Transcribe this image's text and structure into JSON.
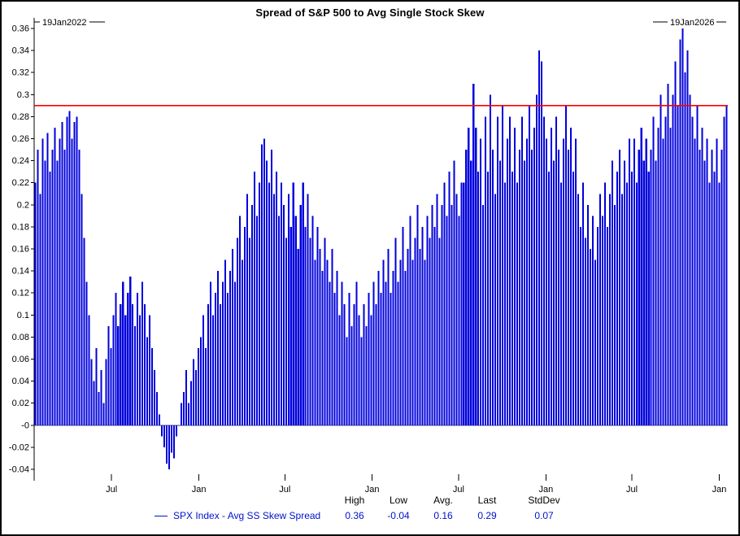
{
  "title": "Spread of S&P 500 to Avg Single Stock Skew",
  "range": {
    "start": "19Jan2022",
    "end": "19Jan2026"
  },
  "colors": {
    "bar": "#0000dd",
    "reference_line": "#ff0000",
    "accent_text": "#0011cc"
  },
  "legend": {
    "series_label": "SPX Index - Avg SS Skew Spread",
    "stats_headers": [
      "High",
      "Low",
      "Avg.",
      "Last",
      "StdDev"
    ],
    "stats_values": [
      "0.36",
      "-0.04",
      "0.16",
      "0.29",
      "0.07"
    ]
  },
  "chart_data": {
    "type": "bar",
    "title": "Spread of S&P 500 to Avg Single Stock Skew",
    "series_name": "SPX Index - Avg SS Skew Spread",
    "x_range": [
      "19Jan2022",
      "19Jan2026"
    ],
    "ylim": [
      -0.04,
      0.36
    ],
    "grid": false,
    "legend_position": "bottom",
    "reference_line": 0.29,
    "stats": {
      "high": 0.36,
      "low": -0.04,
      "avg": 0.16,
      "last": 0.29,
      "stddev": 0.07
    },
    "y_tick_labels": [
      "0.36",
      "0.34",
      "0.32",
      "0.3",
      "0.28",
      "0.26",
      "0.24",
      "0.22",
      "0.2",
      "0.18",
      "0.16",
      "0.14",
      "0.12",
      "0.1",
      "0.08",
      "0.06",
      "0.04",
      "0.02",
      "-0",
      "-0.02",
      "-0.04"
    ],
    "x_ticks": [
      {
        "label": "Jul",
        "f": 0.1116
      },
      {
        "label": "Jan",
        "f": 0.2375
      },
      {
        "label": "Jul",
        "f": 0.3614
      },
      {
        "label": "Jan",
        "f": 0.4873
      },
      {
        "label": "Jul",
        "f": 0.6119
      },
      {
        "label": "Jan",
        "f": 0.7378
      },
      {
        "label": "Jul",
        "f": 0.8617
      },
      {
        "label": "Jan",
        "f": 0.9877
      }
    ],
    "values": [
      0.22,
      0.25,
      0.21,
      0.26,
      0.24,
      0.265,
      0.23,
      0.25,
      0.27,
      0.24,
      0.26,
      0.275,
      0.25,
      0.28,
      0.285,
      0.26,
      0.275,
      0.28,
      0.25,
      0.21,
      0.17,
      0.13,
      0.1,
      0.06,
      0.04,
      0.07,
      0.03,
      0.05,
      0.02,
      0.06,
      0.09,
      0.07,
      0.1,
      0.12,
      0.09,
      0.11,
      0.13,
      0.1,
      0.12,
      0.135,
      0.11,
      0.09,
      0.12,
      0.1,
      0.13,
      0.11,
      0.08,
      0.1,
      0.07,
      0.05,
      0.03,
      0.01,
      -0.01,
      -0.02,
      -0.035,
      -0.04,
      -0.025,
      -0.03,
      -0.01,
      0.0,
      0.02,
      0.03,
      0.05,
      0.02,
      0.04,
      0.06,
      0.05,
      0.07,
      0.08,
      0.1,
      0.07,
      0.11,
      0.13,
      0.1,
      0.12,
      0.14,
      0.11,
      0.13,
      0.15,
      0.12,
      0.14,
      0.16,
      0.13,
      0.17,
      0.19,
      0.15,
      0.18,
      0.21,
      0.17,
      0.2,
      0.23,
      0.19,
      0.22,
      0.255,
      0.26,
      0.24,
      0.22,
      0.25,
      0.21,
      0.23,
      0.19,
      0.22,
      0.2,
      0.17,
      0.21,
      0.18,
      0.22,
      0.19,
      0.16,
      0.2,
      0.22,
      0.18,
      0.21,
      0.17,
      0.19,
      0.15,
      0.18,
      0.16,
      0.14,
      0.17,
      0.15,
      0.13,
      0.16,
      0.12,
      0.14,
      0.1,
      0.13,
      0.11,
      0.08,
      0.12,
      0.09,
      0.11,
      0.13,
      0.1,
      0.08,
      0.11,
      0.09,
      0.12,
      0.1,
      0.13,
      0.11,
      0.14,
      0.12,
      0.15,
      0.13,
      0.16,
      0.12,
      0.14,
      0.17,
      0.13,
      0.15,
      0.18,
      0.14,
      0.16,
      0.19,
      0.15,
      0.17,
      0.2,
      0.16,
      0.18,
      0.15,
      0.19,
      0.17,
      0.2,
      0.18,
      0.21,
      0.17,
      0.2,
      0.22,
      0.19,
      0.23,
      0.2,
      0.24,
      0.21,
      0.19,
      0.22,
      0.22,
      0.25,
      0.27,
      0.24,
      0.31,
      0.27,
      0.23,
      0.26,
      0.2,
      0.28,
      0.23,
      0.3,
      0.25,
      0.21,
      0.28,
      0.24,
      0.29,
      0.22,
      0.26,
      0.28,
      0.23,
      0.27,
      0.22,
      0.25,
      0.28,
      0.24,
      0.26,
      0.29,
      0.25,
      0.27,
      0.3,
      0.34,
      0.33,
      0.28,
      0.26,
      0.23,
      0.27,
      0.24,
      0.28,
      0.25,
      0.22,
      0.26,
      0.29,
      0.25,
      0.27,
      0.23,
      0.26,
      0.21,
      0.18,
      0.22,
      0.17,
      0.2,
      0.16,
      0.19,
      0.15,
      0.18,
      0.21,
      0.19,
      0.22,
      0.18,
      0.21,
      0.24,
      0.2,
      0.23,
      0.25,
      0.21,
      0.24,
      0.22,
      0.26,
      0.23,
      0.26,
      0.22,
      0.25,
      0.27,
      0.24,
      0.26,
      0.23,
      0.25,
      0.28,
      0.24,
      0.27,
      0.3,
      0.26,
      0.28,
      0.31,
      0.27,
      0.3,
      0.33,
      0.29,
      0.35,
      0.36,
      0.32,
      0.34,
      0.3,
      0.28,
      0.26,
      0.29,
      0.25,
      0.27,
      0.24,
      0.26,
      0.22,
      0.25,
      0.23,
      0.26,
      0.22,
      0.25,
      0.28,
      0.29
    ]
  }
}
